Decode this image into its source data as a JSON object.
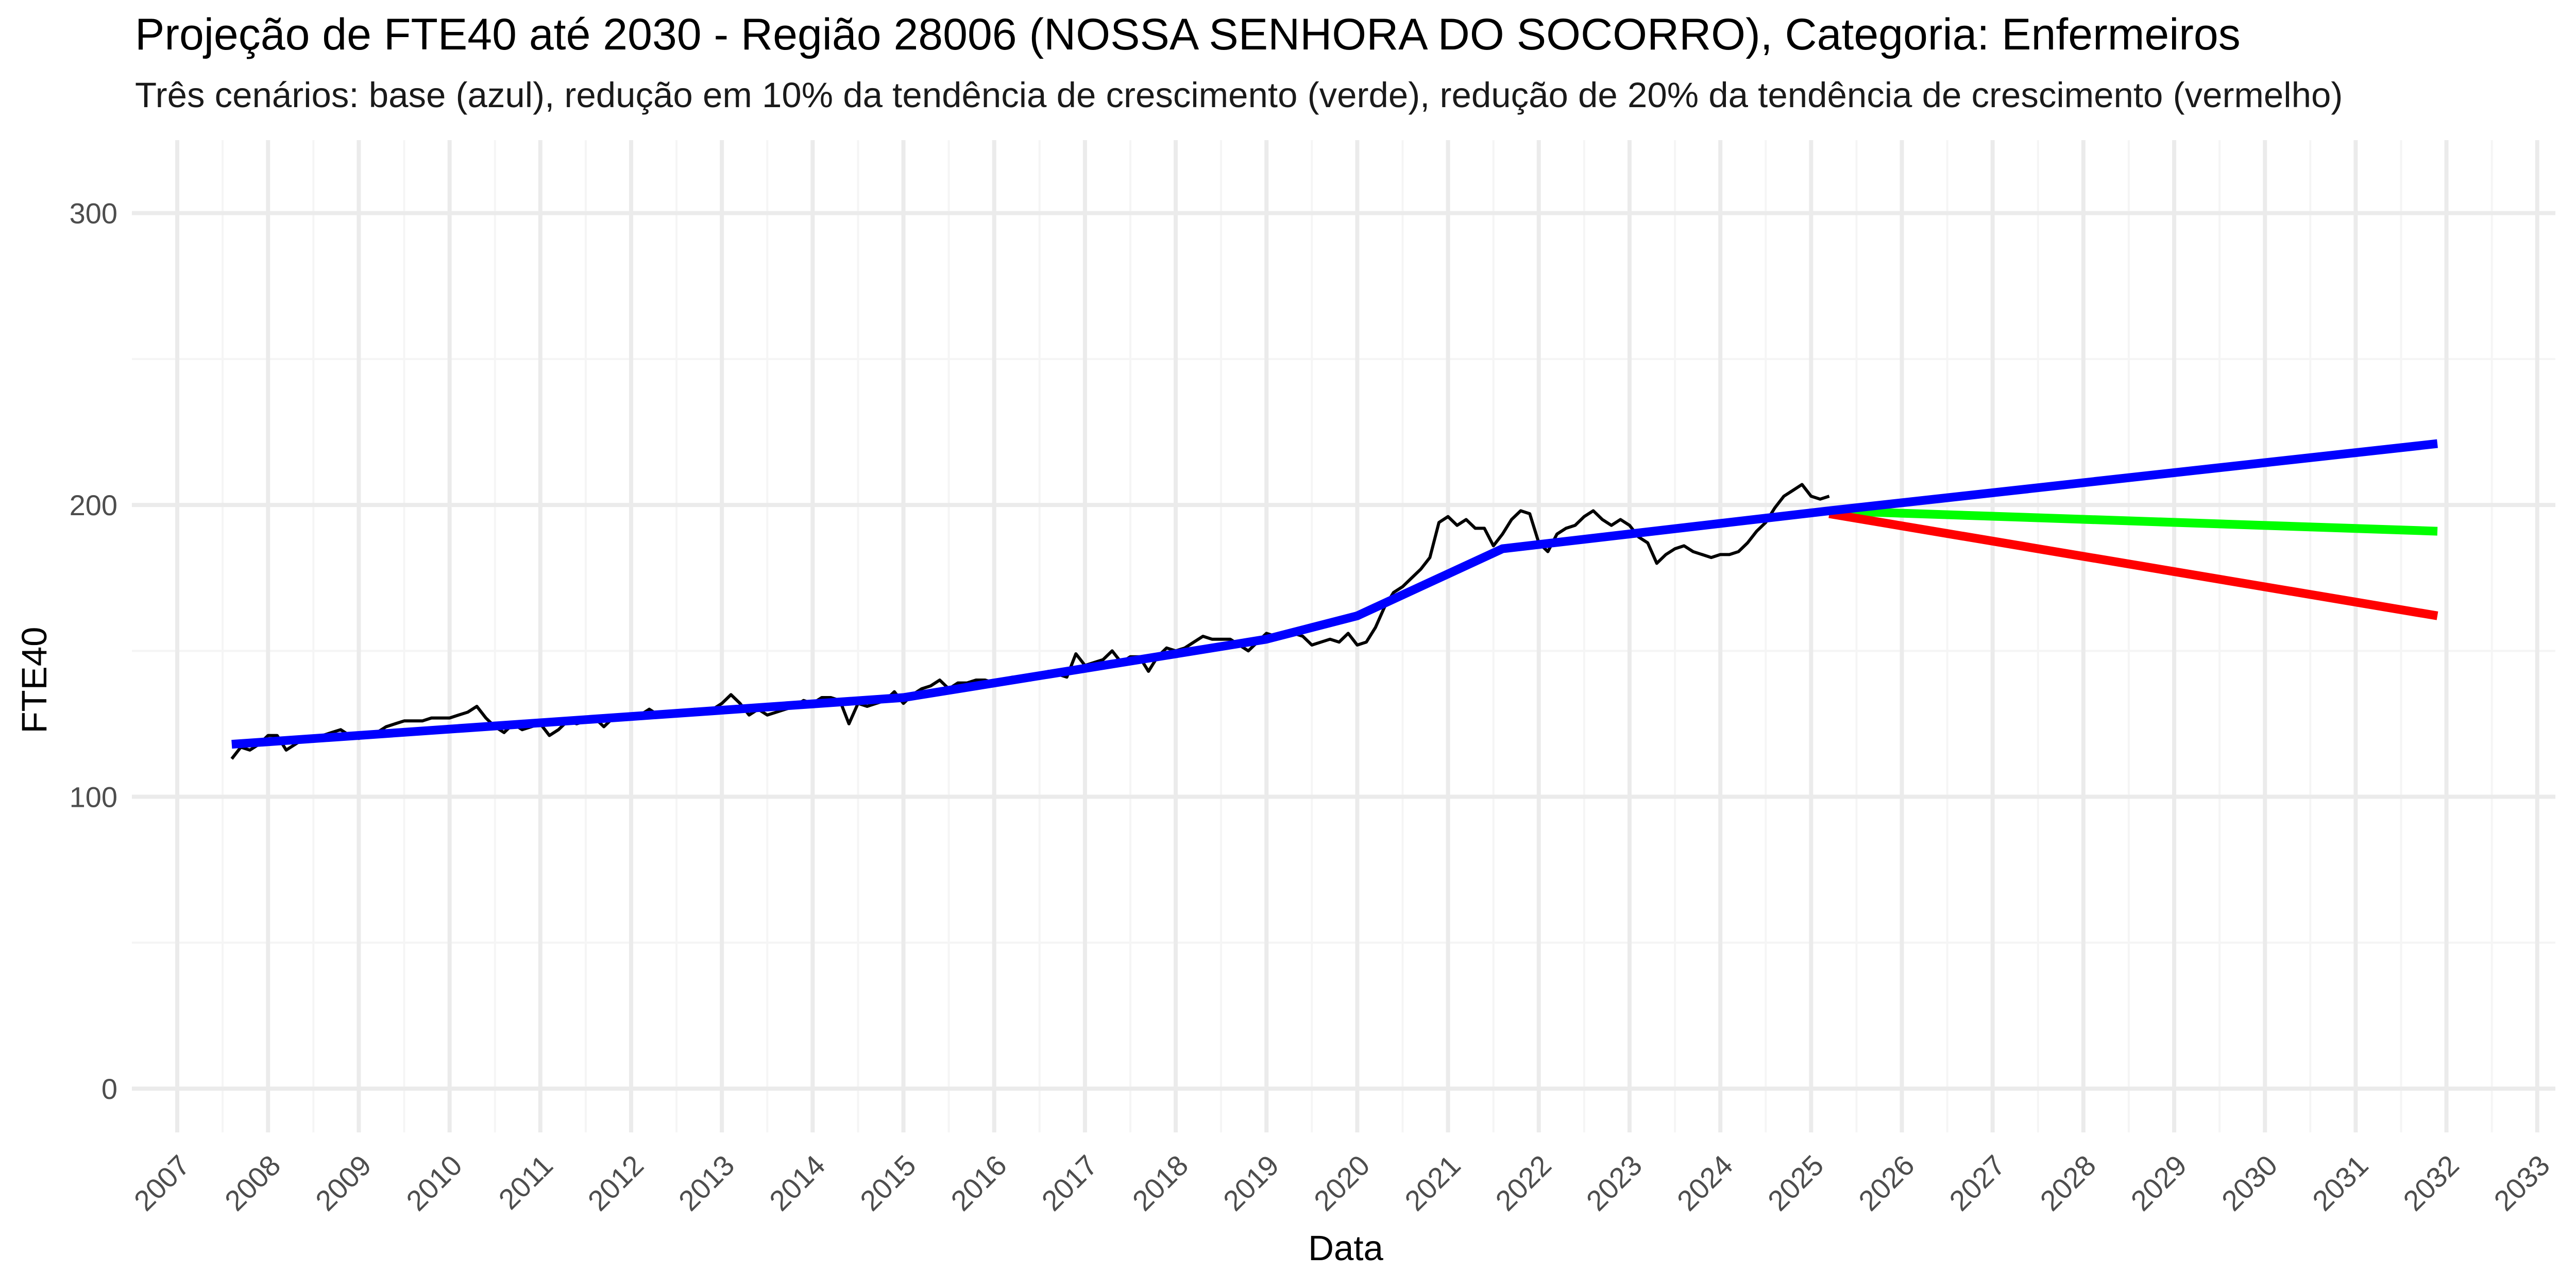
{
  "title": "Projeção de FTE40 até 2030 - Região 28006 (NOSSA SENHORA DO SOCORRO), Categoria: Enfermeiros",
  "subtitle": "Três cenários: base (azul), redução em 10% da tendência de crescimento (verde), redução de 20% da tendência de crescimento (vermelho)",
  "chart_data": {
    "type": "line",
    "title": "Projeção de FTE40 até 2030 - Região 28006 (NOSSA SENHORA DO SOCORRO), Categoria: Enfermeiros",
    "subtitle": "Três cenários: base (azul), redução em 10% da tendência de crescimento (verde), redução de 20% da tendência de crescimento (vermelho)",
    "xlabel": "Data",
    "ylabel": "FTE40",
    "xlim": [
      2006.5,
      2033.2
    ],
    "ylim": [
      -15,
      325
    ],
    "x_ticks": [
      2007,
      2008,
      2009,
      2010,
      2011,
      2012,
      2013,
      2014,
      2015,
      2016,
      2017,
      2018,
      2019,
      2020,
      2021,
      2022,
      2023,
      2024,
      2025,
      2026,
      2027,
      2028,
      2029,
      2030,
      2031,
      2032,
      2033
    ],
    "y_ticks": [
      0,
      100,
      200,
      300
    ],
    "grid": true,
    "legend": "none",
    "colors": {
      "observed": "#000000",
      "base": "#0000FF",
      "minus10": "#00FF00",
      "minus20": "#FF0000",
      "grid_major": "#EBEBEB",
      "grid_minor": "#F5F5F5"
    },
    "series": [
      {
        "color": "#000000",
        "x": [
          2007.6,
          2007.7,
          2007.8,
          2007.9,
          2008.0,
          2008.1,
          2008.2,
          2008.3,
          2008.4,
          2008.5,
          2008.6,
          2008.7,
          2008.8,
          2008.9,
          2009.0,
          2009.1,
          2009.2,
          2009.3,
          2009.4,
          2009.5,
          2009.6,
          2009.7,
          2009.8,
          2009.9,
          2010.0,
          2010.1,
          2010.2,
          2010.3,
          2010.4,
          2010.5,
          2010.6,
          2010.7,
          2010.8,
          2010.9,
          2011.0,
          2011.1,
          2011.2,
          2011.3,
          2011.4,
          2011.5,
          2011.6,
          2011.7,
          2011.8,
          2011.9,
          2012.0,
          2012.1,
          2012.2,
          2012.3,
          2012.4,
          2012.5,
          2012.6,
          2012.7,
          2012.8,
          2012.9,
          2013.0,
          2013.1,
          2013.2,
          2013.3,
          2013.4,
          2013.5,
          2013.6,
          2013.7,
          2013.8,
          2013.9,
          2014.0,
          2014.1,
          2014.2,
          2014.3,
          2014.4,
          2014.5,
          2014.6,
          2014.7,
          2014.8,
          2014.9,
          2015.0,
          2015.1,
          2015.2,
          2015.3,
          2015.4,
          2015.5,
          2015.6,
          2015.7,
          2015.8,
          2015.9,
          2016.0,
          2016.1,
          2016.2,
          2016.3,
          2016.4,
          2016.5,
          2016.6,
          2016.7,
          2016.8,
          2016.9,
          2017.0,
          2017.1,
          2017.2,
          2017.3,
          2017.4,
          2017.5,
          2017.6,
          2017.7,
          2017.8,
          2017.9,
          2018.0,
          2018.1,
          2018.2,
          2018.3,
          2018.4,
          2018.5,
          2018.6,
          2018.7,
          2018.8,
          2018.9,
          2019.0,
          2019.1,
          2019.2,
          2019.3,
          2019.4,
          2019.5,
          2019.6,
          2019.7,
          2019.8,
          2019.9,
          2020.0,
          2020.1,
          2020.2,
          2020.3,
          2020.4,
          2020.5,
          2020.6,
          2020.7,
          2020.8,
          2020.9,
          2021.0,
          2021.1,
          2021.2,
          2021.3,
          2021.4,
          2021.5,
          2021.6,
          2021.7,
          2021.8,
          2021.9,
          2022.0,
          2022.1,
          2022.2,
          2022.3,
          2022.4,
          2022.5,
          2022.6,
          2022.7,
          2022.8,
          2022.9,
          2023.0,
          2023.1,
          2023.2,
          2023.3,
          2023.4,
          2023.5,
          2023.6,
          2023.7,
          2023.8,
          2023.9,
          2024.0,
          2024.1,
          2024.2,
          2024.3,
          2024.4,
          2024.5,
          2024.6,
          2024.7,
          2024.8,
          2024.9,
          2025.0,
          2025.1,
          2025.2
        ],
        "values": [
          113,
          117,
          116,
          118,
          121,
          121,
          116,
          118,
          120,
          119,
          121,
          122,
          123,
          121,
          120,
          122,
          122,
          124,
          125,
          126,
          126,
          126,
          127,
          127,
          127,
          128,
          129,
          131,
          127,
          124,
          122,
          125,
          123,
          124,
          125,
          121,
          123,
          126,
          125,
          126,
          127,
          124,
          127,
          128,
          127,
          128,
          130,
          128,
          129,
          128,
          129,
          130,
          130,
          130,
          132,
          135,
          132,
          128,
          130,
          128,
          129,
          130,
          131,
          133,
          132,
          134,
          134,
          133,
          125,
          132,
          131,
          132,
          133,
          136,
          132,
          135,
          137,
          138,
          140,
          137,
          139,
          139,
          140,
          140,
          139,
          140,
          141,
          140,
          140,
          142,
          143,
          142,
          141,
          149,
          145,
          146,
          147,
          150,
          146,
          148,
          148,
          143,
          148,
          151,
          150,
          151,
          153,
          155,
          154,
          154,
          154,
          152,
          150,
          153,
          156,
          155,
          155,
          156,
          155,
          152,
          153,
          154,
          153,
          156,
          152,
          153,
          158,
          165,
          170,
          172,
          175,
          178,
          182,
          194,
          196,
          193,
          195,
          192,
          192,
          186,
          190,
          195,
          198,
          197,
          187,
          184,
          190,
          192,
          193,
          196,
          198,
          195,
          193,
          195,
          193,
          189,
          187,
          180,
          183,
          185,
          186,
          184,
          183,
          182,
          183,
          183,
          184,
          187,
          191,
          194,
          199,
          203,
          205,
          207,
          203,
          202,
          203
        ]
      },
      {
        "color": "#0000FF",
        "x": [
          2007.6,
          2015.0,
          2019.0,
          2020.0,
          2021.6,
          2025.2,
          2031.9
        ],
        "values": [
          118,
          134,
          154,
          162,
          185,
          198,
          221
        ]
      },
      {
        "color": "#00FF00",
        "x": [
          2025.2,
          2031.9
        ],
        "values": [
          198,
          191
        ]
      },
      {
        "color": "#FF0000",
        "x": [
          2025.2,
          2031.9
        ],
        "values": [
          197,
          162
        ]
      }
    ]
  }
}
